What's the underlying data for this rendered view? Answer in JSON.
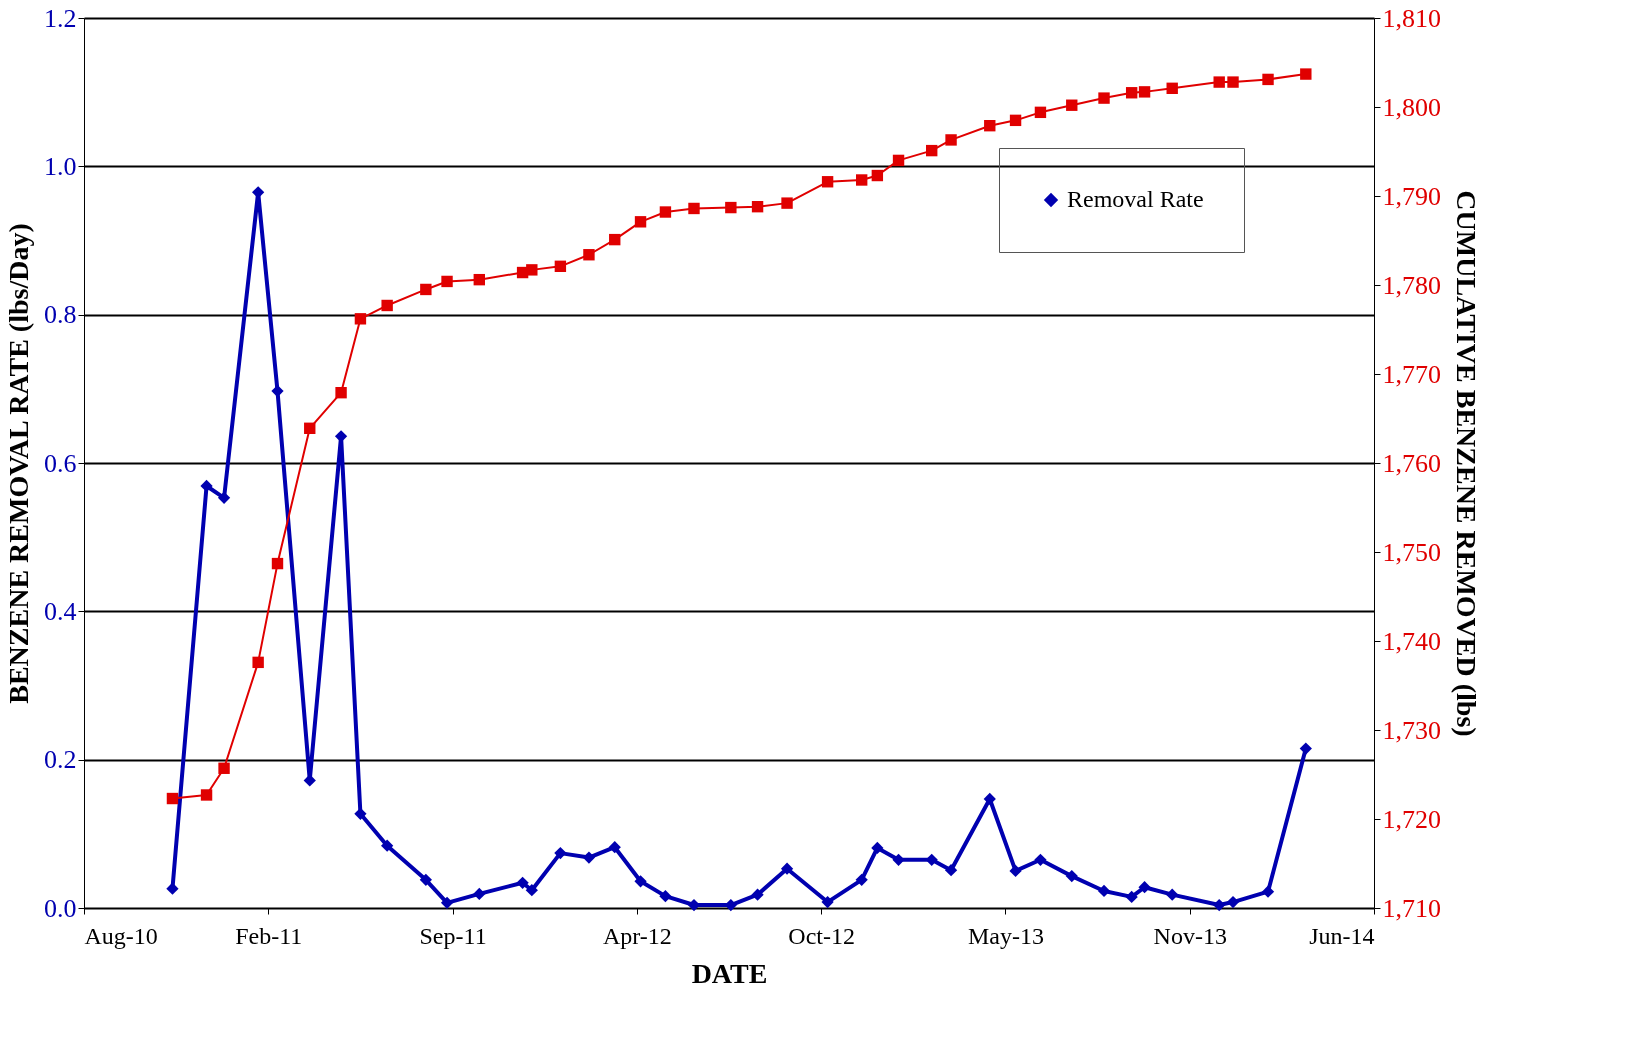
{
  "chart_data": {
    "type": "line",
    "xlabel": "DATE",
    "ylabel": "BENZENE REMOVAL RATE (lbs/Day)",
    "y2label": "CUMULATIVE BENZENE REMOVED  (lbs)",
    "x": [
      "2010-11-15",
      "2010-12-22",
      "2011-01-10",
      "2011-02-16",
      "2011-03-09",
      "2011-04-13",
      "2011-05-17",
      "2011-06-07",
      "2011-07-06",
      "2011-08-17",
      "2011-09-09",
      "2011-10-14",
      "2011-11-30",
      "2011-12-10",
      "2012-01-10",
      "2012-02-10",
      "2012-03-09",
      "2012-04-06",
      "2012-05-03",
      "2012-06-03",
      "2012-07-13",
      "2012-08-11",
      "2012-09-12",
      "2012-10-26",
      "2012-12-02",
      "2012-12-19",
      "2013-01-11",
      "2013-02-16",
      "2013-03-09",
      "2013-04-20",
      "2013-05-18",
      "2013-06-14",
      "2013-07-18",
      "2013-08-22",
      "2013-09-21",
      "2013-10-05",
      "2013-11-04",
      "2013-12-25",
      "2014-01-09",
      "2014-02-16",
      "2014-03-29"
    ],
    "series": [
      {
        "name": "Removal Rate",
        "color": "#0000b0",
        "marker": "diamond",
        "values": [
          0.026,
          0.569,
          0.553,
          0.965,
          0.697,
          0.172,
          0.636,
          0.127,
          0.084,
          0.038,
          0.007,
          0.019,
          0.034,
          0.024,
          0.074,
          0.068,
          0.082,
          0.036,
          0.016,
          0.004,
          0.004,
          0.018,
          0.053,
          0.008,
          0.038,
          0.081,
          0.065,
          0.065,
          0.051,
          0.147,
          0.05,
          0.065,
          0.043,
          0.023,
          0.015,
          0.028,
          0.018,
          0.004,
          0.008,
          0.022,
          0.215
        ]
      },
      {
        "color": "#e00000",
        "marker": "square",
        "axis": "y2",
        "values": [
          1722.3,
          1722.7,
          1725.7,
          1737.6,
          1748.7,
          1763.9,
          1767.9,
          1776.2,
          1777.7,
          1779.5,
          1780.4,
          1780.6,
          1781.4,
          1781.7,
          1782.1,
          1783.4,
          1785.1,
          1787.1,
          1788.2,
          1788.6,
          1788.7,
          1788.8,
          1789.2,
          1791.6,
          1791.8,
          1792.3,
          1794.0,
          1795.1,
          1796.3,
          1797.9,
          1798.5,
          1799.4,
          1800.2,
          1801.0,
          1801.6,
          1801.7,
          1802.1,
          1802.8,
          1802.8,
          1803.1,
          1803.7
        ]
      }
    ],
    "xlim": [
      "2010-08-11",
      "2014-06-11"
    ],
    "xticks": [
      {
        "value": "2010-08-11",
        "label": "Aug-10"
      },
      {
        "value": "2011-02-27",
        "label": "Feb-11"
      },
      {
        "value": "2011-09-15",
        "label": "Sep-11"
      },
      {
        "value": "2012-04-02",
        "label": "Apr-12"
      },
      {
        "value": "2012-10-19",
        "label": "Oct-12"
      },
      {
        "value": "2013-05-07",
        "label": "May-13"
      },
      {
        "value": "2013-11-23",
        "label": "Nov-13"
      },
      {
        "value": "2014-06-11",
        "label": "Jun-14"
      }
    ],
    "ylim": [
      0,
      1.2
    ],
    "yticks": [
      {
        "value": 0,
        "label": "0.0"
      },
      {
        "value": 0.2,
        "label": "0.2"
      },
      {
        "value": 0.4,
        "label": "0.4"
      },
      {
        "value": 0.6,
        "label": "0.6"
      },
      {
        "value": 0.8,
        "label": "0.8"
      },
      {
        "value": 1.0,
        "label": "1.0"
      },
      {
        "value": 1.2,
        "label": "1.2"
      }
    ],
    "y2lim": [
      1710,
      1810
    ],
    "y2ticks": [
      {
        "value": 1710,
        "label": "1,710"
      },
      {
        "value": 1720,
        "label": "1,720"
      },
      {
        "value": 1730,
        "label": "1,730"
      },
      {
        "value": 1740,
        "label": "1,740"
      },
      {
        "value": 1750,
        "label": "1,750"
      },
      {
        "value": 1760,
        "label": "1,760"
      },
      {
        "value": 1770,
        "label": "1,770"
      },
      {
        "value": 1780,
        "label": "1,780"
      },
      {
        "value": 1790,
        "label": "1,790"
      },
      {
        "value": 1800,
        "label": "1,800"
      },
      {
        "value": 1810,
        "label": "1,810"
      }
    ],
    "grid": "y",
    "legend": "top right",
    "line_style": "solid"
  }
}
